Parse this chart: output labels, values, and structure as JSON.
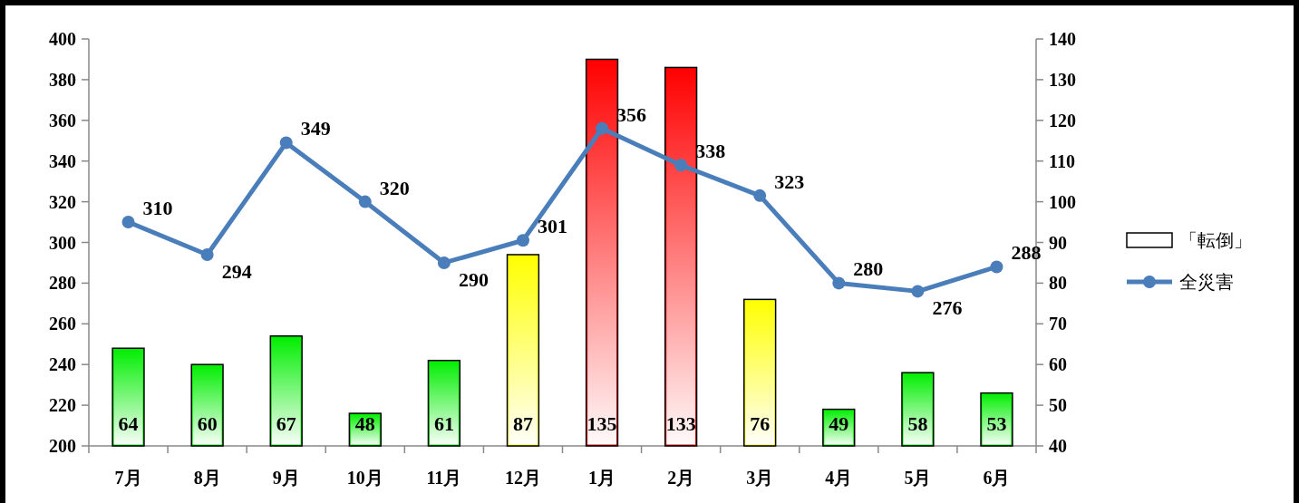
{
  "chart_data": {
    "type": "bar",
    "categories": [
      "7月",
      "8月",
      "9月",
      "10月",
      "11月",
      "12月",
      "1月",
      "2月",
      "3月",
      "4月",
      "5月",
      "6月"
    ],
    "series": [
      {
        "name": "「転倒」",
        "axis": "y2",
        "colors": [
          "#00ee00",
          "#00ee00",
          "#00ee00",
          "#00ee00",
          "#00ee00",
          "#ffff00",
          "#ff0000",
          "#ff0000",
          "#ffff00",
          "#00ee00",
          "#00ee00",
          "#00ee00"
        ],
        "values": [
          64,
          60,
          67,
          48,
          61,
          87,
          135,
          133,
          76,
          49,
          58,
          53
        ]
      },
      {
        "name": "全災害",
        "type": "line",
        "axis": "y",
        "color": "#4a7ebb",
        "values": [
          310,
          294,
          349,
          320,
          290,
          301,
          356,
          338,
          323,
          280,
          276,
          288
        ]
      }
    ],
    "ylim": [
      200,
      400
    ],
    "yticks": [
      200,
      220,
      240,
      260,
      280,
      300,
      320,
      340,
      360,
      380,
      400
    ],
    "y2lim": [
      40,
      140
    ],
    "y2ticks": [
      40,
      50,
      60,
      70,
      80,
      90,
      100,
      110,
      120,
      130,
      140
    ],
    "data_labels": true,
    "legend": "right",
    "marker": "circle",
    "line_style": "solid"
  }
}
